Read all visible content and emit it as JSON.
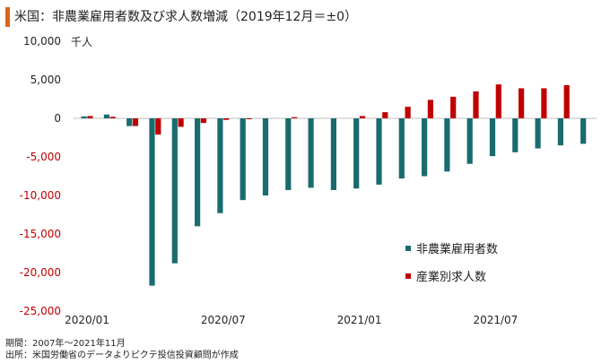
{
  "header": {
    "title": "米国：非農業雇用者数及び求人数増減（2019年12月＝±0）",
    "unit": "千人"
  },
  "footer": {
    "period": "期間：2007年～2021年11月",
    "source": "出所：米国労働省のデータよりピクテ投信投資顧問が作成"
  },
  "colors": {
    "series1": "#1a6b6f",
    "series2": "#c00000",
    "accent": "#d9661f"
  },
  "chart_data": {
    "type": "bar",
    "categories": [
      "2020/01",
      "2020/02",
      "2020/03",
      "2020/04",
      "2020/05",
      "2020/06",
      "2020/07",
      "2020/08",
      "2020/09",
      "2020/10",
      "2020/11",
      "2020/12",
      "2021/01",
      "2021/02",
      "2021/03",
      "2021/04",
      "2021/05",
      "2021/06",
      "2021/07",
      "2021/08",
      "2021/09",
      "2021/10",
      "2021/11"
    ],
    "x_tick_labels": [
      "2020/01",
      "2020/07",
      "2021/01",
      "2021/07"
    ],
    "y_ticks": [
      10000,
      5000,
      0,
      -5000,
      -10000,
      -15000,
      -20000,
      -25000
    ],
    "y_tick_labels": [
      "10,000",
      "5,000",
      "0",
      "-5,000",
      "-10,000",
      "-15,000",
      "-20,000",
      "-25,000"
    ],
    "ylim": [
      -25000,
      10000
    ],
    "legend_position": "right-middle",
    "series": [
      {
        "name": "非農業雇用者数",
        "values": [
          250,
          500,
          -1000,
          -21700,
          -18800,
          -14000,
          -12300,
          -10600,
          -10000,
          -9300,
          -9000,
          -9300,
          -9100,
          -8600,
          -7800,
          -7500,
          -6900,
          -5900,
          -4900,
          -4400,
          -3900,
          -3500,
          -3300
        ]
      },
      {
        "name": "産業別求人数",
        "values": [
          300,
          200,
          -1000,
          -2100,
          -1100,
          -600,
          -200,
          -100,
          0,
          150,
          0,
          0,
          300,
          800,
          1500,
          2400,
          2800,
          3500,
          4400,
          3900,
          3900,
          4300,
          null
        ]
      }
    ]
  }
}
